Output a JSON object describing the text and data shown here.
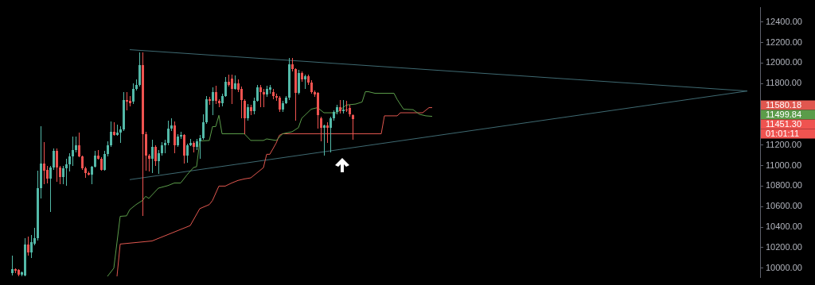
{
  "chart_data": {
    "type": "candlestick",
    "categories": [
      null,
      null,
      null,
      null,
      null,
      null,
      null,
      null,
      null,
      null,
      null,
      null,
      null,
      null,
      null,
      null,
      null,
      null,
      null,
      null,
      null,
      null,
      null,
      null,
      null,
      null,
      null,
      null,
      null,
      null,
      null,
      null,
      null,
      null,
      null,
      null,
      null,
      null,
      null,
      null,
      null,
      null,
      null,
      null,
      null,
      null,
      null,
      null,
      null,
      null,
      null,
      null,
      null,
      null,
      null,
      null,
      null,
      null,
      null,
      null,
      null,
      null,
      null,
      null,
      null,
      null,
      null,
      null,
      null,
      null,
      null,
      null,
      null,
      null,
      null,
      null,
      null,
      null,
      null,
      null,
      null,
      null,
      null,
      null,
      null,
      null,
      null,
      null,
      null,
      null,
      null,
      null,
      null,
      null,
      null,
      null,
      null,
      null,
      null,
      null,
      null,
      null,
      null,
      null,
      null,
      null,
      null,
      null,
      null,
      null,
      null,
      null,
      null,
      null,
      null,
      null,
      null,
      null,
      null,
      null,
      null,
      null,
      null,
      null,
      null,
      null,
      null,
      null,
      null,
      null,
      null,
      null,
      null,
      null,
      null,
      null,
      null,
      null,
      null,
      null,
      null,
      null,
      null,
      null,
      null,
      null,
      null,
      null,
      null,
      null,
      null,
      null,
      null,
      null,
      null,
      null,
      null,
      null,
      null,
      null,
      null,
      null,
      null,
      null,
      null,
      null,
      null,
      null,
      null,
      null,
      null,
      null,
      null,
      null,
      null,
      null,
      null,
      null,
      null,
      null,
      null,
      null,
      null,
      null,
      null,
      null,
      null,
      null,
      null,
      null,
      null,
      null,
      null,
      null,
      null,
      null,
      null,
      null,
      null,
      null,
      null,
      null,
      null,
      null,
      null,
      null,
      null,
      null,
      null,
      null,
      null,
      null,
      null,
      null,
      null,
      null,
      null,
      null,
      null,
      null,
      null,
      null,
      null,
      null,
      null,
      null,
      null,
      null,
      null,
      null,
      null,
      null,
      null,
      null,
      null,
      null
    ],
    "ohlc": [
      [
        9950,
        10120,
        9930,
        9990
      ],
      [
        9990,
        10000,
        9950,
        9975
      ],
      [
        9980,
        9990,
        9920,
        9940
      ],
      [
        9940,
        9970,
        9920,
        9960
      ],
      [
        9930,
        10290,
        9920,
        10230
      ],
      [
        10230,
        10310,
        10120,
        10150
      ],
      [
        10150,
        10320,
        10100,
        10250
      ],
      [
        10240,
        10390,
        10220,
        10290
      ],
      [
        10290,
        10950,
        10270,
        10780
      ],
      [
        10780,
        11380,
        10680,
        11020
      ],
      [
        11020,
        11230,
        10820,
        10950
      ],
      [
        10960,
        11000,
        10830,
        10870
      ],
      [
        10870,
        11000,
        10550,
        10980
      ],
      [
        10980,
        11170,
        10960,
        11140
      ],
      [
        11140,
        11170,
        10840,
        10980
      ],
      [
        10980,
        11000,
        10820,
        10890
      ],
      [
        10890,
        11000,
        10820,
        10970
      ],
      [
        10970,
        11070,
        10800,
        11010
      ],
      [
        11010,
        11120,
        10940,
        11090
      ],
      [
        11090,
        11280,
        11000,
        11150
      ],
      [
        11150,
        11280,
        11130,
        11200
      ],
      [
        11200,
        11320,
        11080,
        11090
      ],
      [
        11090,
        11100,
        10960,
        10970
      ],
      [
        10970,
        10990,
        10880,
        10930
      ],
      [
        10930,
        10940,
        10900,
        10910
      ],
      [
        10910,
        11000,
        10820,
        10990
      ],
      [
        10990,
        11140,
        10980,
        11100
      ],
      [
        11100,
        11150,
        11060,
        11070
      ],
      [
        11070,
        11080,
        10950,
        10960
      ],
      [
        10960,
        11140,
        10950,
        11110
      ],
      [
        11110,
        11240,
        11090,
        11200
      ],
      [
        11200,
        11430,
        11180,
        11330
      ],
      [
        11330,
        11420,
        11290,
        11300
      ],
      [
        11300,
        11400,
        11290,
        11320
      ],
      [
        11320,
        11380,
        11220,
        11350
      ],
      [
        11350,
        11720,
        11340,
        11640
      ],
      [
        11640,
        11720,
        11540,
        11620
      ],
      [
        11630,
        11680,
        11580,
        11610
      ],
      [
        11620,
        11800,
        11600,
        11750
      ],
      [
        11750,
        11840,
        11730,
        11790
      ],
      [
        11790,
        12100,
        11770,
        11980
      ],
      [
        11980,
        12100,
        10510,
        11310
      ],
      [
        11310,
        11330,
        10950,
        11100
      ],
      [
        11100,
        11110,
        10940,
        11070
      ],
      [
        11070,
        11250,
        10930,
        11180
      ],
      [
        11180,
        11200,
        11000,
        11040
      ],
      [
        11040,
        11150,
        10920,
        11120
      ],
      [
        11120,
        11230,
        11100,
        11200
      ],
      [
        11200,
        11250,
        11120,
        11220
      ],
      [
        11220,
        11440,
        11200,
        11360
      ],
      [
        11360,
        11460,
        11340,
        11390
      ],
      [
        11390,
        11430,
        11120,
        11200
      ],
      [
        11200,
        11310,
        11180,
        11280
      ],
      [
        11280,
        11330,
        11260,
        11300
      ],
      [
        11300,
        11310,
        11020,
        11100
      ],
      [
        11100,
        11210,
        11030,
        11200
      ],
      [
        11200,
        11260,
        11190,
        11220
      ],
      [
        11220,
        11240,
        11130,
        11180
      ],
      [
        11180,
        11260,
        11150,
        11240
      ],
      [
        11240,
        11300,
        11070,
        11270
      ],
      [
        11270,
        11500,
        11250,
        11420
      ],
      [
        11420,
        11680,
        11410,
        11650
      ],
      [
        11650,
        11670,
        11590,
        11630
      ],
      [
        11630,
        11760,
        11490,
        11720
      ],
      [
        11720,
        11780,
        11600,
        11630
      ],
      [
        11630,
        11650,
        11570,
        11610
      ],
      [
        11610,
        11700,
        11580,
        11680
      ],
      [
        11680,
        11860,
        11670,
        11820
      ],
      [
        11820,
        11890,
        11770,
        11790
      ],
      [
        11850,
        11890,
        11600,
        11750
      ],
      [
        11750,
        11880,
        11740,
        11800
      ],
      [
        11800,
        11840,
        11720,
        11740
      ],
      [
        11750,
        11770,
        11460,
        11640
      ],
      [
        11630,
        11650,
        11310,
        11460
      ],
      [
        11460,
        11600,
        11440,
        11570
      ],
      [
        11570,
        11590,
        11490,
        11530
      ],
      [
        11530,
        11660,
        11500,
        11630
      ],
      [
        11630,
        11790,
        11620,
        11760
      ],
      [
        11760,
        11790,
        11570,
        11720
      ],
      [
        11720,
        11750,
        11570,
        11690
      ],
      [
        11690,
        11780,
        11670,
        11750
      ],
      [
        11740,
        11790,
        11700,
        11760
      ],
      [
        11720,
        11750,
        11650,
        11680
      ],
      [
        11680,
        11700,
        11630,
        11660
      ],
      [
        11660,
        11680,
        11520,
        11550
      ],
      [
        11550,
        11630,
        11520,
        11610
      ],
      [
        11610,
        11680,
        11600,
        11660
      ],
      [
        11660,
        12050,
        11640,
        11990
      ],
      [
        11990,
        12050,
        11920,
        11940
      ],
      [
        11940,
        11950,
        11440,
        11710
      ],
      [
        11710,
        11930,
        11690,
        11900
      ],
      [
        11900,
        11920,
        11820,
        11840
      ],
      [
        11840,
        11890,
        11750,
        11870
      ],
      [
        11870,
        11890,
        11790,
        11810
      ],
      [
        11810,
        11830,
        11700,
        11720
      ],
      [
        11720,
        11730,
        11670,
        11690
      ],
      [
        11710,
        11720,
        11360,
        11490
      ],
      [
        11460,
        11480,
        11240,
        11370
      ],
      [
        11370,
        11400,
        11100,
        11390
      ],
      [
        11390,
        11420,
        11220,
        11370
      ],
      [
        11370,
        11480,
        11130,
        11460
      ],
      [
        11460,
        11540,
        11440,
        11520
      ],
      [
        11520,
        11590,
        11500,
        11570
      ],
      [
        11570,
        11640,
        11510,
        11530
      ],
      [
        11530,
        11640,
        11510,
        11550
      ],
      [
        11550,
        11630,
        11520,
        11540
      ],
      [
        11560,
        11590,
        11480,
        11500
      ],
      [
        11490,
        11500,
        11250,
        11450
      ],
      null,
      null,
      null,
      null,
      null,
      null,
      null,
      null,
      null,
      null,
      null,
      null,
      null,
      null,
      null,
      null,
      null,
      null,
      null,
      null,
      null,
      null,
      null,
      null,
      null,
      null,
      null,
      null,
      null,
      null,
      null,
      null,
      null,
      null,
      null,
      null,
      null,
      null,
      null,
      null,
      null,
      null,
      null,
      null,
      null,
      null,
      null,
      null,
      null,
      null,
      null,
      null,
      null,
      null,
      null,
      null,
      null,
      null,
      null,
      null,
      null,
      null,
      null,
      null,
      null,
      null,
      null,
      null,
      null,
      null,
      null,
      null,
      null,
      null,
      null,
      null,
      null,
      null,
      null,
      null,
      null,
      null,
      null,
      null,
      null,
      null,
      null,
      null,
      null,
      null,
      null,
      null,
      null,
      null,
      null,
      null,
      null,
      null,
      null,
      null,
      null,
      null,
      null,
      null,
      null,
      null,
      null,
      null,
      null,
      null,
      null,
      null,
      null,
      null,
      null,
      null,
      null,
      null,
      null,
      null,
      null,
      null,
      null,
      null,
      null,
      null,
      null,
      null
    ],
    "colors": [
      "#53b9a8",
      "#ef5350",
      "#ef5350",
      "#53b9a8",
      "#53b9a8",
      "#ef5350",
      "#53b9a8",
      "#53b9a8",
      "#53b9a8",
      "#53b9a8",
      "#ef5350",
      "#ef5350",
      "#53b9a8",
      "#53b9a8",
      "#ef5350",
      "#ef5350",
      "#53b9a8",
      "#53b9a8",
      "#53b9a8",
      "#53b9a8",
      "#53b9a8",
      "#ef5350",
      "#ef5350",
      "#ef5350",
      "#ef5350",
      "#53b9a8",
      "#53b9a8",
      "#ef5350",
      "#ef5350",
      "#53b9a8",
      "#53b9a8",
      "#53b9a8",
      "#ef5350",
      "#53b9a8",
      "#53b9a8",
      "#53b9a8",
      "#ef5350",
      "#ef5350",
      "#53b9a8",
      "#53b9a8",
      "#53b9a8",
      "#ef5350",
      "#ef5350",
      "#ef5350",
      "#53b9a8",
      "#ef5350",
      "#53b9a8",
      "#53b9a8",
      "#53b9a8",
      "#53b9a8",
      "#53b9a8",
      "#ef5350",
      "#53b9a8",
      "#53b9a8",
      "#ef5350",
      "#53b9a8",
      "#53b9a8",
      "#ef5350",
      "#53b9a8",
      "#53b9a8",
      "#53b9a8",
      "#53b9a8",
      "#ef5350",
      "#53b9a8",
      "#ef5350",
      "#ef5350",
      "#53b9a8",
      "#53b9a8",
      "#ef5350",
      "#ef5350",
      "#53b9a8",
      "#ef5350",
      "#ef5350",
      "#ef5350",
      "#53b9a8",
      "#ef5350",
      "#53b9a8",
      "#53b9a8",
      "#ef5350",
      "#ef5350",
      "#53b9a8",
      "#53b9a8",
      "#ef5350",
      "#ef5350",
      "#ef5350",
      "#53b9a8",
      "#53b9a8",
      "#53b9a8",
      "#ef5350",
      "#ef5350",
      "#53b9a8",
      "#ef5350",
      "#53b9a8",
      "#ef5350",
      "#ef5350",
      "#ef5350",
      "#ef5350",
      "#ef5350",
      "#53b9a8",
      "#ef5350",
      "#53b9a8",
      "#53b9a8",
      "#53b9a8",
      "#ef5350",
      "#53b9a8",
      "#ef5350",
      "#ef5350",
      "#ef5350",
      null,
      null,
      null,
      null,
      null,
      null,
      null,
      null,
      null,
      null,
      null,
      null,
      null,
      null,
      null,
      null,
      null,
      null,
      null,
      null,
      null,
      null,
      null,
      null,
      null,
      null,
      null,
      null,
      null,
      null,
      null,
      null,
      null,
      null,
      null,
      null,
      null,
      null,
      null,
      null,
      null,
      null,
      null,
      null,
      null,
      null,
      null,
      null,
      null,
      null,
      null,
      null,
      null,
      null,
      null,
      null,
      null,
      null,
      null,
      null,
      null,
      null,
      null,
      null,
      null,
      null,
      null,
      null,
      null,
      null,
      null,
      null,
      null,
      null,
      null,
      null,
      null,
      null,
      null,
      null,
      null,
      null,
      null,
      null,
      null,
      null,
      null,
      null,
      null,
      null,
      null,
      null,
      null,
      null,
      null,
      null,
      null,
      null,
      null,
      null,
      null,
      null,
      null,
      null,
      null,
      null,
      null,
      null,
      null,
      null,
      null,
      null,
      null,
      null,
      null,
      null,
      null,
      null,
      null,
      null,
      null,
      null,
      null,
      null,
      null,
      null,
      null,
      null
    ],
    "series": [
      {
        "type": "line",
        "color": "#5b9c4a",
        "values": [
          null,
          null,
          null,
          null,
          null,
          null,
          null,
          null,
          null,
          null,
          null,
          null,
          null,
          null,
          null,
          null,
          null,
          null,
          null,
          null,
          null,
          null,
          null,
          null,
          null,
          null,
          null,
          null,
          null,
          null,
          9920,
          null,
          10000,
          null,
          10505,
          null,
          10510,
          10570,
          null,
          10620,
          null,
          10660,
          10700,
          10680,
          null,
          null,
          10780,
          null,
          null,
          10805,
          null,
          10830,
          null,
          10830,
          null,
          10910,
          null,
          10980,
          10990,
          11240,
          null,
          null,
          11245,
          11380,
          11380,
          11490,
          11310,
          null,
          null,
          null,
          null,
          null,
          null,
          11310,
          null,
          11245,
          null,
          null,
          null,
          11245,
          11260,
          null,
          null,
          11245,
          null,
          11310,
          null,
          null,
          11330,
          null,
          11370,
          11460,
          null,
          null,
          11550,
          null,
          11565,
          null,
          11515,
          null,
          null,
          null,
          11515,
          null,
          null,
          11590,
          null,
          null,
          11600,
          null,
          11620,
          11720,
          11720,
          null,
          11705,
          null,
          null,
          null,
          null,
          null,
          11705,
          11645,
          null,
          11550,
          null,
          null,
          11545,
          null,
          11500,
          null,
          11485,
          null,
          11480,
          null,
          null,
          null,
          null,
          null,
          null,
          null,
          null,
          null,
          null,
          null,
          null,
          null,
          null,
          null,
          null,
          null,
          null,
          null,
          null,
          null,
          null,
          null,
          null,
          null,
          null,
          null,
          null,
          null,
          null,
          null,
          null,
          null,
          null,
          null,
          null,
          null,
          null,
          null,
          null,
          null,
          null,
          null,
          null,
          null,
          null,
          null,
          null,
          null,
          null,
          null,
          null,
          null,
          null,
          null,
          null,
          null,
          null,
          null,
          null,
          null,
          null,
          null,
          null,
          null,
          null,
          null,
          null,
          null,
          null,
          null,
          null,
          null,
          null,
          null,
          null,
          null,
          null,
          null,
          null,
          null,
          null,
          null,
          null,
          null,
          null,
          null,
          null,
          null,
          null,
          null,
          null,
          null,
          null,
          null,
          null,
          null,
          null,
          null,
          null,
          null,
          null,
          null
        ]
      },
      {
        "type": "line",
        "color": "#e0574f",
        "values": [
          null,
          null,
          null,
          null,
          null,
          null,
          null,
          null,
          null,
          null,
          null,
          null,
          null,
          null,
          null,
          null,
          null,
          null,
          null,
          null,
          null,
          null,
          null,
          null,
          null,
          null,
          null,
          null,
          null,
          null,
          null,
          null,
          null,
          9920,
          10235,
          null,
          null,
          null,
          null,
          null,
          null,
          null,
          null,
          null,
          10265,
          null,
          null,
          null,
          null,
          null,
          null,
          null,
          null,
          null,
          null,
          null,
          10415,
          null,
          null,
          10580,
          null,
          null,
          10620,
          10660,
          null,
          10800,
          null,
          10800,
          null,
          10830,
          null,
          10855,
          null,
          10870,
          null,
          10880,
          null,
          null,
          null,
          10980,
          11110,
          11110,
          null,
          11220,
          11295,
          11310,
          null,
          null,
          null,
          null,
          null,
          null,
          null,
          null,
          null,
          null,
          null,
          null,
          null,
          null,
          null,
          null,
          null,
          null,
          null,
          null,
          null,
          null,
          null,
          null,
          null,
          null,
          null,
          null,
          null,
          null,
          11310,
          11485,
          null,
          null,
          null,
          11485,
          11515,
          null,
          null,
          null,
          null,
          null,
          null,
          11515,
          null,
          11565,
          11565,
          null,
          null,
          null,
          null,
          null,
          null,
          null,
          null,
          null,
          null,
          null,
          null,
          null,
          null,
          null,
          null,
          null,
          null,
          null,
          null,
          null,
          null,
          null,
          null,
          null,
          null,
          null,
          null,
          null,
          null,
          null,
          null,
          null,
          null,
          null,
          null,
          null,
          null,
          null,
          null,
          null,
          null,
          null,
          null,
          null,
          null,
          null,
          null,
          null,
          null,
          null,
          null,
          null,
          null,
          null,
          null,
          null,
          null,
          null,
          null,
          null,
          null,
          null,
          null,
          null,
          null,
          null,
          null,
          null,
          null,
          null,
          null,
          null,
          null,
          null,
          null,
          null,
          null,
          null,
          null,
          null,
          null,
          null,
          null,
          null,
          null,
          null,
          null,
          null,
          null,
          null,
          null,
          null,
          null,
          null,
          null,
          null,
          null,
          null,
          null,
          null,
          null,
          null
        ]
      },
      {
        "type": "line",
        "color": "#3f6a72",
        "values": [
          null,
          null,
          null,
          null,
          null,
          null,
          null,
          null,
          null,
          null,
          null,
          null,
          null,
          null,
          null,
          null,
          null,
          null,
          null,
          null,
          null,
          null,
          null,
          null,
          null,
          null,
          null,
          null,
          null,
          null,
          null,
          null,
          null,
          null,
          null,
          null,
          null,
          12130,
          null,
          null,
          null,
          null,
          null,
          null,
          null,
          null,
          null,
          null,
          null,
          null,
          null,
          null,
          null,
          null,
          null,
          null,
          null,
          null,
          null,
          null,
          null,
          null,
          null,
          null,
          null,
          null,
          null,
          null,
          null,
          null,
          null,
          null,
          null,
          null,
          null,
          null,
          null,
          null,
          null,
          null,
          null,
          null,
          null,
          null,
          null,
          null,
          null,
          null,
          null,
          null,
          null,
          null,
          null,
          null,
          null,
          null,
          null,
          null,
          null,
          null,
          null,
          null,
          null,
          null,
          null,
          null,
          null,
          null,
          null,
          null,
          null,
          null,
          null,
          null,
          null,
          null,
          null,
          null,
          null,
          null,
          null,
          null,
          null,
          null,
          null,
          null,
          null,
          null,
          null,
          null,
          null,
          null,
          null,
          null,
          null,
          null,
          null,
          null,
          null,
          null,
          null,
          null,
          null,
          null,
          null,
          null,
          null,
          null,
          null,
          null,
          null,
          null,
          null,
          null,
          null,
          null,
          null,
          null,
          null,
          null,
          null,
          null,
          null,
          null,
          null,
          null,
          null,
          null,
          null,
          null,
          null,
          null,
          null,
          null,
          null,
          null,
          null,
          null,
          null,
          null,
          null,
          null,
          null,
          null,
          null,
          null,
          null,
          null,
          null,
          null,
          null,
          null,
          null,
          null,
          null,
          null,
          null,
          null,
          null,
          null,
          null,
          null,
          null,
          null,
          null,
          null,
          null,
          null,
          null,
          null,
          null,
          null,
          null,
          null,
          null,
          null,
          null,
          null,
          null,
          null,
          null,
          null,
          null,
          null,
          null,
          null,
          null,
          null,
          null,
          null,
          null,
          11727,
          null,
          null,
          null,
          null
        ]
      },
      {
        "type": "line",
        "color": "#3f6a72",
        "values": [
          null,
          null,
          null,
          null,
          null,
          null,
          null,
          null,
          null,
          null,
          null,
          null,
          null,
          null,
          null,
          null,
          null,
          null,
          null,
          null,
          null,
          null,
          null,
          null,
          null,
          null,
          null,
          null,
          null,
          null,
          null,
          null,
          null,
          null,
          null,
          null,
          null,
          10863,
          null,
          null,
          null,
          null,
          null,
          null,
          null,
          null,
          null,
          null,
          null,
          null,
          null,
          null,
          null,
          null,
          null,
          null,
          null,
          null,
          null,
          null,
          null,
          null,
          null,
          null,
          null,
          null,
          null,
          null,
          null,
          null,
          null,
          null,
          null,
          null,
          null,
          null,
          null,
          null,
          null,
          null,
          null,
          null,
          null,
          null,
          null,
          null,
          null,
          null,
          null,
          null,
          null,
          null,
          null,
          null,
          null,
          null,
          null,
          null,
          null,
          null,
          null,
          null,
          null,
          null,
          null,
          null,
          null,
          null,
          null,
          null,
          null,
          null,
          null,
          null,
          null,
          null,
          null,
          null,
          null,
          null,
          null,
          null,
          null,
          null,
          null,
          null,
          null,
          null,
          null,
          null,
          null,
          null,
          null,
          null,
          null,
          null,
          null,
          null,
          null,
          null,
          null,
          null,
          null,
          null,
          null,
          null,
          null,
          null,
          null,
          null,
          null,
          null,
          null,
          null,
          null,
          null,
          null,
          null,
          null,
          null,
          null,
          null,
          null,
          null,
          null,
          null,
          null,
          null,
          null,
          null,
          null,
          null,
          null,
          null,
          null,
          null,
          null,
          null,
          null,
          null,
          null,
          null,
          null,
          null,
          null,
          null,
          null,
          null,
          null,
          null,
          null,
          null,
          null,
          null,
          null,
          null,
          null,
          null,
          null,
          null,
          null,
          null,
          null,
          null,
          null,
          null,
          null,
          null,
          null,
          null,
          null,
          null,
          null,
          null,
          null,
          null,
          null,
          null,
          null,
          null,
          null,
          null,
          null,
          null,
          null,
          null,
          null,
          null,
          null,
          null,
          null,
          11727,
          null,
          null,
          null,
          null
        ]
      }
    ],
    "ylim": [
      9910,
      12540
    ],
    "yticks": [
      {
        "value": 10000,
        "label": "10000.00"
      },
      {
        "value": 10200,
        "label": "10200.00"
      },
      {
        "value": 10400,
        "label": "10400.00"
      },
      {
        "value": 10600,
        "label": "10600.00"
      },
      {
        "value": 10800,
        "label": "10800.00"
      },
      {
        "value": 11000,
        "label": "11000.00"
      },
      {
        "value": 11200,
        "label": "11200.00"
      },
      {
        "value": 11800,
        "label": "11800.00"
      },
      {
        "value": 12000,
        "label": "12000.00"
      },
      {
        "value": 12200,
        "label": "12200.00"
      },
      {
        "value": 12400,
        "label": "12400.00"
      }
    ],
    "tick_labels": "y",
    "annotations": [
      "11580.18",
      "11499.84",
      "11451.30",
      "01:01:11"
    ]
  }
}
